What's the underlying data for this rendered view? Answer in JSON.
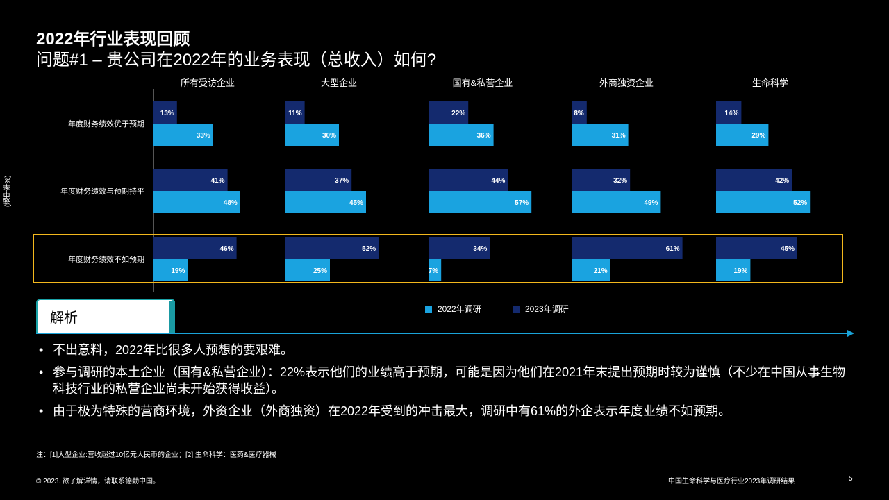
{
  "header": {
    "title_line1": "2022年行业表现回顾",
    "title_line2": "问题#1 – 贵公司在2022年的业务表现（总收入）如何?"
  },
  "colors": {
    "series_2022": "#1aa3e0",
    "series_2023": "#142a6e",
    "highlight": "#f3b81d",
    "accent": "#1aa3d8"
  },
  "chart_data": {
    "type": "bar",
    "orientation": "horizontal",
    "ylabel": "(选中率%)",
    "groups": [
      "所有受访企业",
      "大型企业",
      "国有&私营企业",
      "外商独资企业",
      "生命科学"
    ],
    "categories": [
      "年度财务绩效优于预期",
      "年度财务绩效与预期持平",
      "年度财务绩效不如预期"
    ],
    "series": [
      {
        "name": "2023年调研",
        "values": [
          [
            13,
            41,
            46
          ],
          [
            11,
            37,
            52
          ],
          [
            22,
            44,
            34
          ],
          [
            8,
            32,
            61
          ],
          [
            14,
            42,
            45
          ]
        ]
      },
      {
        "name": "2022年调研",
        "values": [
          [
            33,
            48,
            19
          ],
          [
            30,
            45,
            25
          ],
          [
            36,
            57,
            7
          ],
          [
            31,
            49,
            21
          ],
          [
            29,
            52,
            19
          ]
        ]
      }
    ],
    "unit": "%",
    "highlighted_category": "年度财务绩效不如预期"
  },
  "legend": {
    "item_2022": "2022年调研",
    "item_2023": "2023年调研"
  },
  "analysis": {
    "tab_label": "解析",
    "bullets": [
      "不出意料，2022年比很多人预想的要艰难。",
      "参与调研的本土企业（国有&私营企业）：22%表示他们的业绩高于预期，可能是因为他们在2021年末提出预期时较为谨慎（不少在中国从事生物科技行业的私营企业尚未开始获得收益）。",
      "由于极为特殊的营商环境，外资企业（外商独资）在2022年受到的冲击最大，调研中有61%的外企表示年度业绩不如预期。"
    ]
  },
  "note": "注：[1]大型企业:营收超过10亿元人民币的企业；[2] 生命科学：医药&医疗器械",
  "footer": {
    "copyright": "© 2023. 欲了解详情，请联系德勤中国。",
    "report": "中国生命科学与医疗行业2023年调研结果",
    "page": "5"
  }
}
